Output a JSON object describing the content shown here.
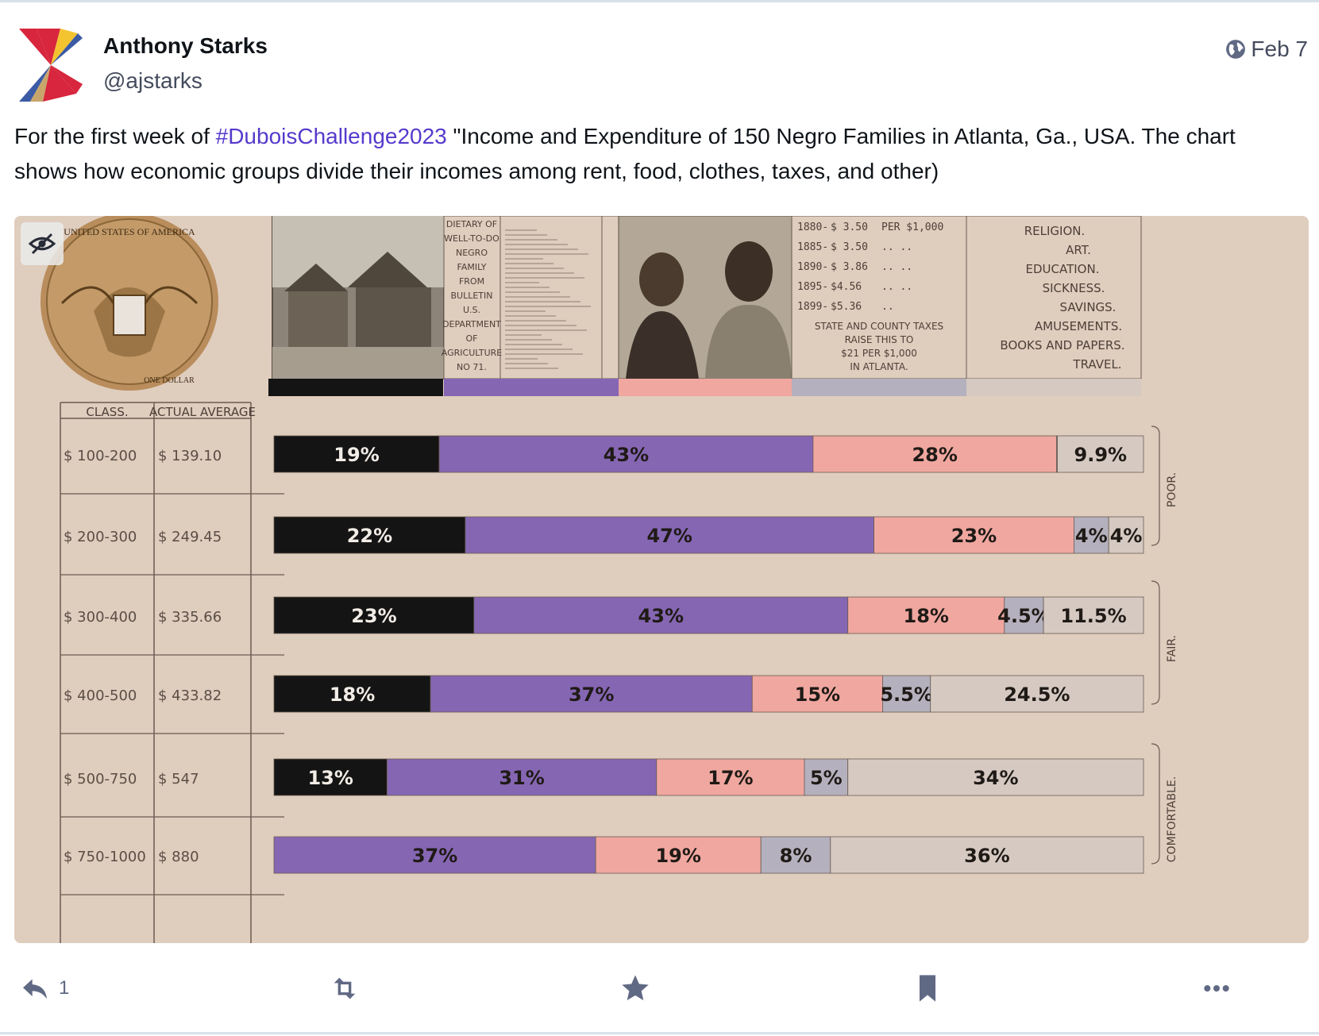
{
  "post": {
    "author_name": "Anthony Starks",
    "handle": "@ajstarks",
    "date": "Feb 7",
    "text_before": "For the first week of ",
    "hashtag": "#DuboisChallenge2023",
    "text_after": " \"Income and Expenditure of 150 Negro Families in Atlanta, Ga., USA.  The chart shows how economic groups divide their incomes among rent, food, clothes, taxes, and other)",
    "reply_count": "1"
  },
  "icons": {
    "globe": "globe-icon",
    "reply": "reply-icon",
    "boost": "boost-icon",
    "favourite": "star-icon",
    "bookmark": "bookmark-icon",
    "more": "more-icon",
    "hide_media": "eye-slash-icon"
  },
  "colors": {
    "hashtag": "#563acc",
    "muted": "#606984",
    "rent": "#141414",
    "food": "#8566b3",
    "clothes": "#f0a7a0",
    "taxes": "#b4b0bd",
    "other": "#d5c9c2"
  },
  "image": {
    "coin_text": "UNITED STATES OF AMERICA",
    "coin_bottom": "ONE DOLLAR",
    "dietary_lines": [
      "DIETARY OF",
      "WELL-TO-DO",
      "NEGRO",
      "FAMILY",
      "FROM",
      "BULLETIN",
      "U.S.",
      "DEPARTMENT",
      "OF",
      "AGRICULTURE",
      "NO 71."
    ],
    "tax_rows": [
      {
        "year": "1880",
        "val": "$ 3.50",
        "rest": "PER   $1,000"
      },
      {
        "year": "1885",
        "val": "$ 3.50",
        "rest": "..        .."
      },
      {
        "year": "1890",
        "val": "$ 3.86",
        "rest": "..        .."
      },
      {
        "year": "1895",
        "val": "$4.56",
        "rest": "..        .."
      },
      {
        "year": "1899",
        "val": "$5.36",
        "rest": ".."
      }
    ],
    "tax_note": [
      "STATE AND COUNTY TAXES",
      "RAISE THIS TO",
      "$21 PER $1,000",
      "IN ATLANTA."
    ],
    "other_list": [
      "RELIGION.",
      "ART.",
      "EDUCATION.",
      "SICKNESS.",
      "SAVINGS.",
      "AMUSEMENTS.",
      "BOOKS AND PAPERS.",
      "TRAVEL."
    ],
    "group_labels": [
      "POOR.",
      "FAIR.",
      "COMFORTABLE."
    ]
  },
  "chart_data": {
    "type": "bar",
    "stacked": true,
    "horizontal": true,
    "columns": [
      "CLASS.",
      "ACTUAL AVERAGE"
    ],
    "categories": [
      "$ 100-200",
      "$ 200-300",
      "$ 300-400",
      "$ 400-500",
      "$ 500-750",
      "$ 750-1000"
    ],
    "actual_average": [
      "$ 139.10",
      "$ 249.45",
      "$ 335.66",
      "$ 433.82",
      "$ 547",
      "$ 880"
    ],
    "series": [
      {
        "values": [
          19,
          22,
          23,
          18,
          13,
          0
        ],
        "labels": [
          "19%",
          "22%",
          "23%",
          "18%",
          "13%",
          ""
        ]
      },
      {
        "values": [
          43,
          47,
          43,
          37,
          31,
          37
        ],
        "labels": [
          "43%",
          "47%",
          "43%",
          "37%",
          "31%",
          "37%"
        ]
      },
      {
        "values": [
          28,
          23,
          18,
          15,
          17,
          19
        ],
        "labels": [
          "28%",
          "23%",
          "18%",
          "15%",
          "17%",
          "19%"
        ]
      },
      {
        "values": [
          0.1,
          4,
          4.5,
          5.5,
          5,
          8
        ],
        "labels": [
          "",
          "4%",
          "4.5%",
          "5.5%",
          "5%",
          "8%"
        ]
      },
      {
        "values": [
          9.9,
          4,
          11.5,
          24.5,
          34,
          36
        ],
        "labels": [
          "9.9%",
          "4%",
          "11.5%",
          "24.5%",
          "34%",
          "36%"
        ]
      }
    ],
    "xlim": [
      0,
      100
    ]
  }
}
